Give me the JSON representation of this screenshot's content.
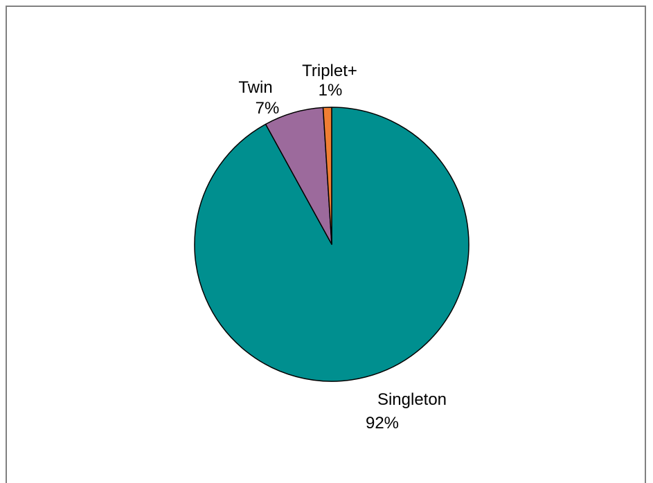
{
  "chart_data": {
    "type": "pie",
    "title": "",
    "slices": [
      {
        "label": "Singleton",
        "value": 92,
        "value_label": "92%",
        "color": "#008F8F"
      },
      {
        "label": "Twin",
        "value": 7,
        "value_label": "7%",
        "color": "#9C6A9C"
      },
      {
        "label": "Triplet+",
        "value": 1,
        "value_label": "1%",
        "color": "#F07E33"
      }
    ],
    "start_angle_deg": 0,
    "direction": "clockwise",
    "legend": "none",
    "border_color": "#808080"
  }
}
